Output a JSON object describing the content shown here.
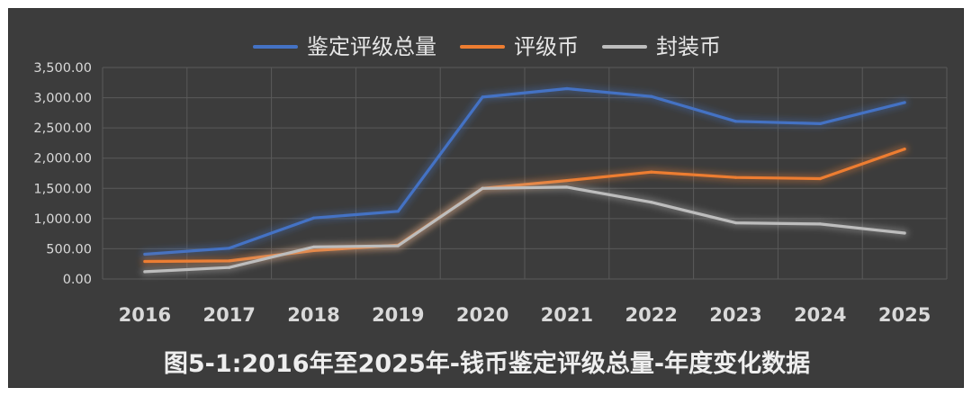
{
  "chart_data": {
    "type": "line",
    "title": "图5-1:2016年至2025年-钱币鉴定评级总量-年度变化数据",
    "x": [
      "2016",
      "2017",
      "2018",
      "2019",
      "2020",
      "2021",
      "2022",
      "2023",
      "2024",
      "2025"
    ],
    "ylim": [
      0,
      3500
    ],
    "yticks": [
      "0.00",
      "500.00",
      "1,000.00",
      "1,500.00",
      "2,000.00",
      "2,500.00",
      "3,000.00",
      "3,500.00"
    ],
    "grid": true,
    "legend_position": "top",
    "series": [
      {
        "name": "鉴定评级总量",
        "color": "#4472c4",
        "values": [
          410,
          510,
          1010,
          1120,
          3010,
          3150,
          3020,
          2610,
          2570,
          2920
        ]
      },
      {
        "name": "评级币",
        "color": "#ed7d31",
        "values": [
          290,
          300,
          470,
          560,
          1500,
          1630,
          1770,
          1680,
          1660,
          2150
        ]
      },
      {
        "name": "封装币",
        "color": "#bdbdbd",
        "values": [
          120,
          190,
          530,
          550,
          1500,
          1520,
          1270,
          930,
          910,
          760
        ]
      }
    ]
  }
}
